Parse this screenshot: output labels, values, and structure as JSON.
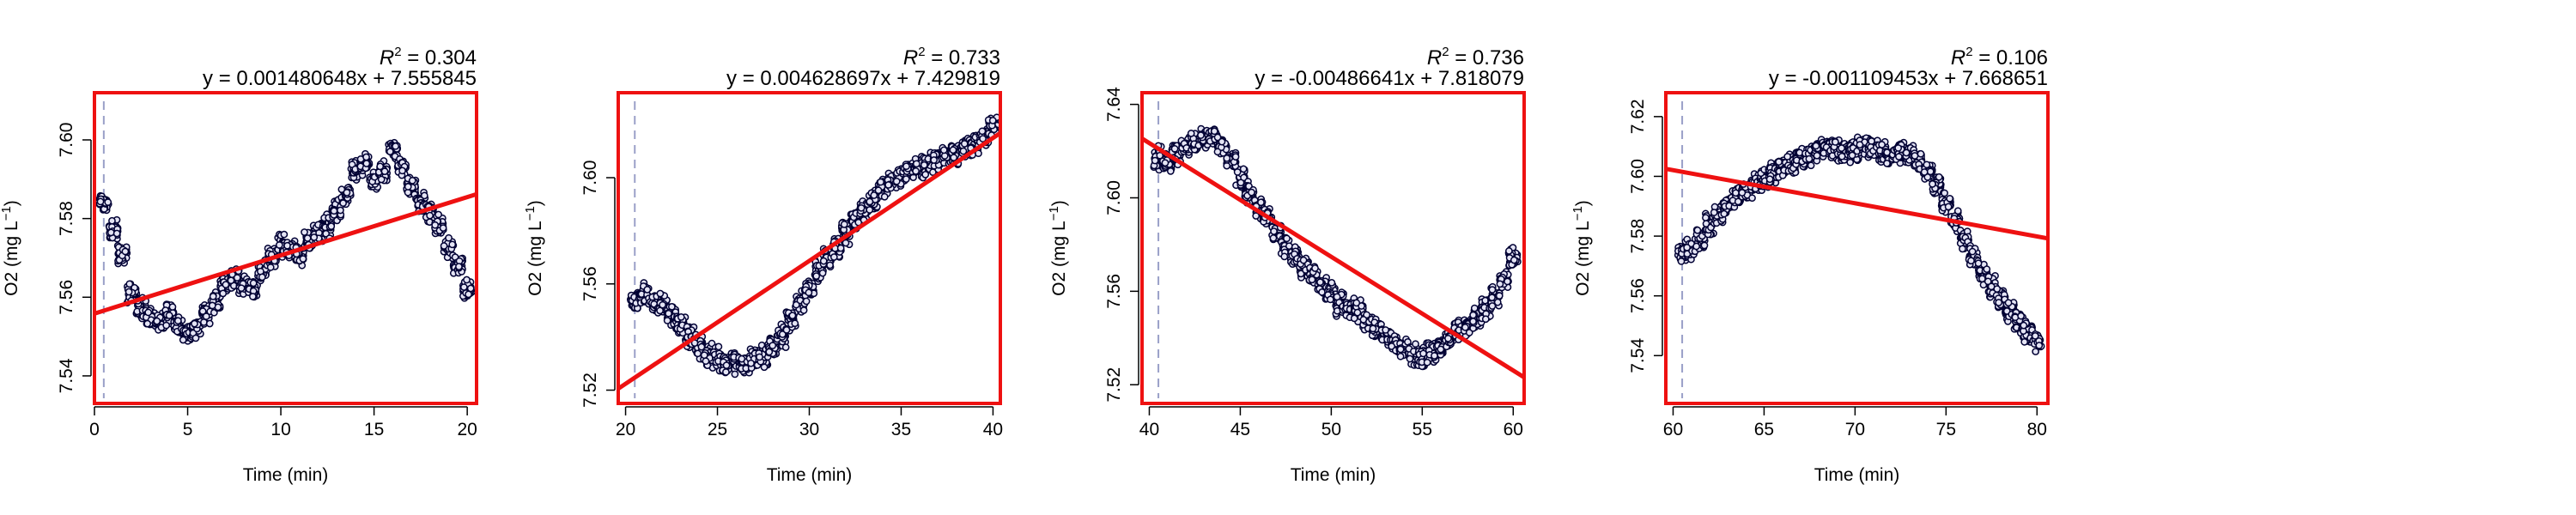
{
  "chart_data": [
    {
      "type": "scatter",
      "title": "",
      "xlabel": "Time (min)",
      "ylabel": "O2 (mg L",
      "ylabel_sup": "−1",
      "ylabel_suffix": ")",
      "r2_label": "R",
      "r2_sup": "2",
      "r2_value": " = 0.304",
      "equation": "y = 0.001480648x + 7.555845",
      "xlim": [
        0,
        20.5
      ],
      "ylim": [
        7.533,
        7.612
      ],
      "xticks": [
        0,
        5,
        10,
        15,
        20
      ],
      "xtick_labels": [
        "0",
        "5",
        "10",
        "15",
        "20"
      ],
      "yticks": [
        7.54,
        7.56,
        7.58,
        7.6
      ],
      "ytick_labels": [
        "7.54",
        "7.56",
        "7.58",
        "7.60"
      ],
      "fit": {
        "slope": 0.001480648,
        "intercept": 7.555845
      },
      "start_marker_x": 0.5,
      "series": [
        {
          "color": "#000033",
          "x": [
            0.5,
            1,
            1.5,
            2,
            2.5,
            3,
            3.5,
            4,
            4.5,
            5,
            5.5,
            6,
            6.5,
            7,
            7.5,
            8,
            8.5,
            9,
            9.5,
            10,
            10.5,
            11,
            11.5,
            12,
            12.5,
            13,
            13.5,
            14,
            14.5,
            15,
            15.5,
            16,
            16.5,
            17,
            17.5,
            18,
            18.5,
            19,
            19.5,
            20
          ],
          "y": [
            7.584,
            7.577,
            7.571,
            7.561,
            7.557,
            7.555,
            7.554,
            7.556,
            7.553,
            7.551,
            7.552,
            7.556,
            7.559,
            7.563,
            7.565,
            7.563,
            7.562,
            7.567,
            7.57,
            7.573,
            7.572,
            7.571,
            7.574,
            7.576,
            7.578,
            7.582,
            7.586,
            7.592,
            7.594,
            7.59,
            7.592,
            7.598,
            7.593,
            7.588,
            7.584,
            7.582,
            7.578,
            7.573,
            7.568,
            7.562
          ]
        }
      ]
    },
    {
      "type": "scatter",
      "title": "",
      "xlabel": "Time (min)",
      "ylabel": "O2 (mg L",
      "ylabel_sup": "−1",
      "ylabel_suffix": ")",
      "r2_label": "R",
      "r2_sup": "2",
      "r2_value": " = 0.733",
      "equation": "y = 0.004628697x + 7.429819",
      "xlim": [
        19.6,
        40.4
      ],
      "ylim": [
        7.515,
        7.632
      ],
      "xticks": [
        20,
        25,
        30,
        35,
        40
      ],
      "xtick_labels": [
        "20",
        "25",
        "30",
        "35",
        "40"
      ],
      "yticks": [
        7.52,
        7.56,
        7.6
      ],
      "ytick_labels": [
        "7.52",
        "7.56",
        "7.60"
      ],
      "fit": {
        "slope": 0.004628697,
        "intercept": 7.429819
      },
      "start_marker_x": 20.5,
      "series": [
        {
          "color": "#000033",
          "x": [
            20.5,
            21,
            21.5,
            22,
            22.5,
            23,
            23.5,
            24,
            24.5,
            25,
            25.5,
            26,
            26.5,
            27,
            27.5,
            28,
            28.5,
            29,
            29.5,
            30,
            30.5,
            31,
            31.5,
            32,
            32.5,
            33,
            33.5,
            34,
            34.5,
            35,
            35.5,
            36,
            36.5,
            37,
            37.5,
            38,
            38.5,
            39,
            39.5,
            40
          ],
          "y": [
            7.553,
            7.556,
            7.553,
            7.552,
            7.548,
            7.545,
            7.54,
            7.536,
            7.533,
            7.532,
            7.53,
            7.531,
            7.53,
            7.532,
            7.533,
            7.536,
            7.541,
            7.547,
            7.553,
            7.558,
            7.565,
            7.57,
            7.574,
            7.579,
            7.585,
            7.589,
            7.592,
            7.596,
            7.599,
            7.601,
            7.603,
            7.604,
            7.606,
            7.607,
            7.608,
            7.609,
            7.611,
            7.612,
            7.615,
            7.619
          ]
        }
      ]
    },
    {
      "type": "scatter",
      "title": "",
      "xlabel": "Time (min)",
      "ylabel": "O2 (mg L",
      "ylabel_sup": "−1",
      "ylabel_suffix": ")",
      "r2_label": "R",
      "r2_sup": "2",
      "r2_value": " = 0.736",
      "equation": "y = -0.00486641x + 7.818079",
      "xlim": [
        39.6,
        60.6
      ],
      "ylim": [
        7.512,
        7.645
      ],
      "xticks": [
        40,
        45,
        50,
        55,
        60
      ],
      "xtick_labels": [
        "40",
        "45",
        "50",
        "55",
        "60"
      ],
      "yticks": [
        7.52,
        7.56,
        7.6,
        7.64
      ],
      "ytick_labels": [
        "7.52",
        "7.56",
        "7.60",
        "7.64"
      ],
      "fit": {
        "slope": -0.00486641,
        "intercept": 7.818079
      },
      "start_marker_x": 40.5,
      "series": [
        {
          "color": "#000033",
          "x": [
            40.5,
            41,
            41.5,
            42,
            42.5,
            43,
            43.5,
            44,
            44.5,
            45,
            45.5,
            46,
            46.5,
            47,
            47.5,
            48,
            48.5,
            49,
            49.5,
            50,
            50.5,
            51,
            51.5,
            52,
            52.5,
            53,
            53.5,
            54,
            54.5,
            55,
            55.5,
            56,
            56.5,
            57,
            57.5,
            58,
            58.5,
            59,
            59.5,
            60
          ],
          "y": [
            7.617,
            7.615,
            7.619,
            7.622,
            7.624,
            7.625,
            7.626,
            7.622,
            7.616,
            7.609,
            7.602,
            7.596,
            7.592,
            7.585,
            7.58,
            7.575,
            7.57,
            7.566,
            7.562,
            7.559,
            7.555,
            7.553,
            7.551,
            7.547,
            7.544,
            7.541,
            7.538,
            7.535,
            7.533,
            7.532,
            7.534,
            7.537,
            7.54,
            7.543,
            7.545,
            7.548,
            7.552,
            7.558,
            7.565,
            7.574
          ]
        }
      ]
    },
    {
      "type": "scatter",
      "title": "",
      "xlabel": "Time (min)",
      "ylabel": "O2 (mg L",
      "ylabel_sup": "−1",
      "ylabel_suffix": ")",
      "r2_label": "R",
      "r2_sup": "2",
      "r2_value": " = 0.106",
      "equation": "y = -0.001109453x + 7.668651",
      "xlim": [
        59.6,
        80.6
      ],
      "ylim": [
        7.524,
        7.628
      ],
      "xticks": [
        60,
        65,
        70,
        75,
        80
      ],
      "xtick_labels": [
        "60",
        "65",
        "70",
        "75",
        "80"
      ],
      "yticks": [
        7.54,
        7.56,
        7.58,
        7.6,
        7.62
      ],
      "ytick_labels": [
        "7.54",
        "7.56",
        "7.58",
        "7.60",
        "7.62"
      ],
      "fit": {
        "slope": -0.001109453,
        "intercept": 7.668651
      },
      "start_marker_x": 60.5,
      "series": [
        {
          "color": "#000033",
          "x": [
            60.5,
            61,
            61.5,
            62,
            62.5,
            63,
            63.5,
            64,
            64.5,
            65,
            65.5,
            66,
            66.5,
            67,
            67.5,
            68,
            68.5,
            69,
            69.5,
            70,
            70.5,
            71,
            71.5,
            72,
            72.5,
            73,
            73.5,
            74,
            74.5,
            75,
            75.5,
            76,
            76.5,
            77,
            77.5,
            78,
            78.5,
            79,
            79.5,
            80
          ],
          "y": [
            7.574,
            7.576,
            7.579,
            7.584,
            7.587,
            7.59,
            7.593,
            7.595,
            7.597,
            7.599,
            7.601,
            7.603,
            7.604,
            7.606,
            7.607,
            7.609,
            7.61,
            7.609,
            7.608,
            7.609,
            7.61,
            7.61,
            7.608,
            7.607,
            7.608,
            7.607,
            7.605,
            7.602,
            7.597,
            7.591,
            7.585,
            7.579,
            7.573,
            7.568,
            7.563,
            7.559,
            7.555,
            7.551,
            7.548,
            7.545
          ]
        }
      ]
    }
  ]
}
